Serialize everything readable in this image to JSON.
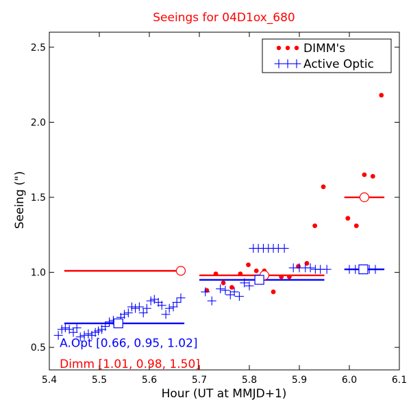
{
  "chart_data": {
    "type": "scatter",
    "title": "Seeings for 04D1ox_680",
    "xlabel": "Hour (UT at MMJD+1)",
    "ylabel": "Seeing (\")",
    "xlim": [
      5.4,
      6.1
    ],
    "ylim": [
      0.35,
      2.6
    ],
    "xticks": [
      5.4,
      5.5,
      5.6,
      5.7,
      5.8,
      5.9,
      6.0,
      6.1
    ],
    "xtick_labels": [
      "5.4",
      "5.5",
      "5.6",
      "5.7",
      "5.8",
      "5.9",
      "6.0",
      "6.1"
    ],
    "yticks": [
      0.5,
      1.0,
      1.5,
      2.0,
      2.5
    ],
    "ytick_labels": [
      "0.5",
      "1.0",
      "1.5",
      "2.0",
      "2.5"
    ],
    "legend_position": "top-right",
    "colors": {
      "dimm": "#ff0000",
      "aopt": "#0000ff",
      "title": "#ff0000"
    },
    "series": [
      {
        "name": "DIMM's",
        "marker": "dot",
        "points": [
          [
            5.715,
            0.88
          ],
          [
            5.733,
            0.99
          ],
          [
            5.748,
            0.93
          ],
          [
            5.765,
            0.9
          ],
          [
            5.782,
            0.99
          ],
          [
            5.798,
            1.05
          ],
          [
            5.814,
            1.01
          ],
          [
            5.83,
            1.01
          ],
          [
            5.848,
            0.87
          ],
          [
            5.864,
            0.97
          ],
          [
            5.88,
            0.97
          ],
          [
            5.898,
            1.04
          ],
          [
            5.915,
            1.06
          ],
          [
            5.931,
            1.31
          ],
          [
            5.948,
            1.57
          ],
          [
            5.997,
            1.36
          ],
          [
            6.014,
            1.31
          ],
          [
            6.03,
            1.65
          ],
          [
            6.047,
            1.64
          ],
          [
            6.064,
            2.18
          ]
        ]
      },
      {
        "name": "Active Optic",
        "marker": "plus",
        "points": [
          [
            5.418,
            0.58
          ],
          [
            5.425,
            0.62
          ],
          [
            5.432,
            0.63
          ],
          [
            5.44,
            0.62
          ],
          [
            5.448,
            0.6
          ],
          [
            5.455,
            0.63
          ],
          [
            5.462,
            0.57
          ],
          [
            5.47,
            0.58
          ],
          [
            5.478,
            0.59
          ],
          [
            5.485,
            0.58
          ],
          [
            5.492,
            0.6
          ],
          [
            5.498,
            0.61
          ],
          [
            5.505,
            0.62
          ],
          [
            5.512,
            0.64
          ],
          [
            5.52,
            0.67
          ],
          [
            5.528,
            0.68
          ],
          [
            5.535,
            0.66
          ],
          [
            5.543,
            0.7
          ],
          [
            5.55,
            0.72
          ],
          [
            5.558,
            0.73
          ],
          [
            5.565,
            0.77
          ],
          [
            5.572,
            0.76
          ],
          [
            5.58,
            0.77
          ],
          [
            5.588,
            0.73
          ],
          [
            5.595,
            0.76
          ],
          [
            5.603,
            0.81
          ],
          [
            5.61,
            0.82
          ],
          [
            5.618,
            0.8
          ],
          [
            5.625,
            0.78
          ],
          [
            5.633,
            0.72
          ],
          [
            5.64,
            0.76
          ],
          [
            5.648,
            0.77
          ],
          [
            5.655,
            0.8
          ],
          [
            5.663,
            0.83
          ],
          [
            5.712,
            0.87
          ],
          [
            5.725,
            0.81
          ],
          [
            5.742,
            0.89
          ],
          [
            5.752,
            0.88
          ],
          [
            5.762,
            0.85
          ],
          [
            5.77,
            0.87
          ],
          [
            5.78,
            0.84
          ],
          [
            5.79,
            0.93
          ],
          [
            5.8,
            0.91
          ],
          [
            5.808,
            1.16
          ],
          [
            5.818,
            1.16
          ],
          [
            5.828,
            1.16
          ],
          [
            5.838,
            1.16
          ],
          [
            5.848,
            1.16
          ],
          [
            5.858,
            1.16
          ],
          [
            5.87,
            1.16
          ],
          [
            5.888,
            1.03
          ],
          [
            5.9,
            1.03
          ],
          [
            5.912,
            1.03
          ],
          [
            5.922,
            1.03
          ],
          [
            5.932,
            1.02
          ],
          [
            5.942,
            1.02
          ],
          [
            5.955,
            1.02
          ],
          [
            6.0,
            1.02
          ],
          [
            6.012,
            1.02
          ],
          [
            6.025,
            1.02
          ],
          [
            6.04,
            1.02
          ],
          [
            6.052,
            1.02
          ]
        ]
      }
    ],
    "summary_lines": [
      {
        "series": "DIMM's",
        "color": "#ff0000",
        "segments": [
          [
            5.43,
            5.663,
            1.01
          ],
          [
            5.7,
            5.95,
            0.98
          ],
          [
            5.99,
            6.07,
            1.5
          ]
        ]
      },
      {
        "series": "Active Optic",
        "color": "#0000ff",
        "segments": [
          [
            5.43,
            5.67,
            0.66
          ],
          [
            5.7,
            5.95,
            0.95
          ],
          [
            5.99,
            6.07,
            1.02
          ]
        ]
      }
    ],
    "summary_markers": [
      {
        "series": "DIMM's",
        "shape": "circle",
        "points": [
          [
            5.663,
            1.01
          ],
          [
            5.83,
            0.98
          ],
          [
            6.03,
            1.5
          ]
        ]
      },
      {
        "series": "Active Optic",
        "shape": "square",
        "points": [
          [
            5.538,
            0.66
          ],
          [
            5.82,
            0.95
          ],
          [
            6.028,
            1.02
          ]
        ]
      }
    ],
    "annotations": [
      {
        "text": "A.Opt [0.66, 0.95, 1.02]",
        "color": "#0000ff",
        "x": 5.418,
        "y": 0.53
      },
      {
        "text": "Dimm [1.01, 0.98, 1.50]",
        "color": "#ff0000",
        "x": 5.418,
        "y": 0.39
      }
    ]
  }
}
